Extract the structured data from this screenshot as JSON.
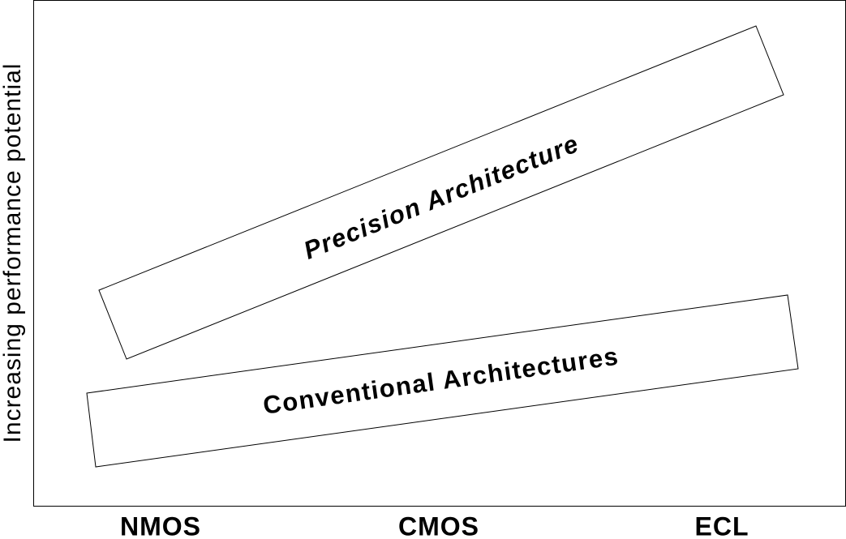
{
  "y_axis_label": "Increasing performance potential",
  "x_labels": [
    "NMOS",
    "CMOS",
    "ECL"
  ],
  "bands": [
    {
      "label": "Precision Architecture"
    },
    {
      "label": "Conventional Architectures"
    }
  ]
}
